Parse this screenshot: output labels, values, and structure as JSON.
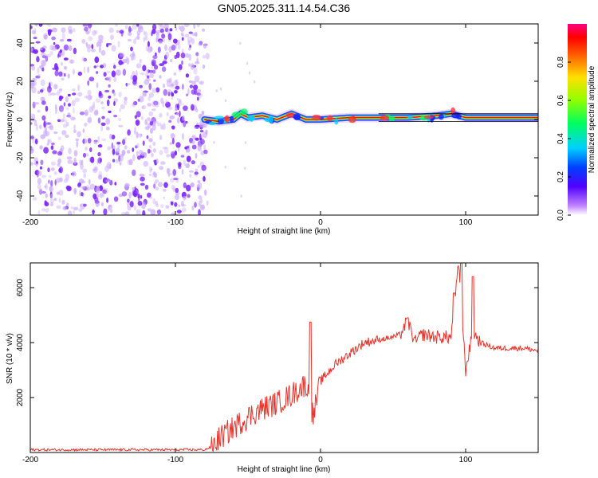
{
  "title": "GN05.2025.311.14.54.C36",
  "colors": {
    "dot_main": "#7a22ff",
    "dot_light": "#c9a8ff",
    "snr_line": "#e8342c",
    "axis": "#000000"
  },
  "chart_data": [
    {
      "type": "heatmap",
      "title": "GN05.2025.311.14.54.C36",
      "xlabel": "Height of straight line (km)",
      "ylabel": "Frequency (Hz)",
      "xlim": [
        -200,
        150
      ],
      "ylim": [
        -50,
        50
      ],
      "xticks": [
        -200,
        -100,
        0,
        100
      ],
      "yticks": [
        -40,
        -20,
        0,
        20,
        40
      ],
      "noise_region_x": [
        -200,
        -80
      ],
      "signal_track": {
        "x": [
          -80,
          -70,
          -60,
          -55,
          -50,
          -40,
          -30,
          -20,
          -10,
          0,
          20,
          40,
          60,
          80,
          90,
          100,
          110,
          130,
          150
        ],
        "y": [
          0,
          -1,
          0,
          3,
          1,
          2,
          0,
          3,
          0,
          0,
          1,
          1,
          1,
          2,
          3,
          1,
          1,
          1,
          1
        ]
      },
      "colorbar": {
        "label": "Normalized spectral amplitude",
        "range": [
          0,
          1
        ],
        "ticks": [
          "0.0",
          "0.2",
          "0.4",
          "0.6",
          "0.8"
        ],
        "tick_values": [
          0.0,
          0.2,
          0.4,
          0.6,
          0.8
        ],
        "colormap": [
          "#ffffff",
          "#a050ff",
          "#4000ff",
          "#0060ff",
          "#00e0ff",
          "#00ff40",
          "#b0ff00",
          "#ffe000",
          "#ff6000",
          "#ff0000",
          "#ff0080"
        ]
      }
    },
    {
      "type": "line",
      "xlabel": "Height of straight line (km)",
      "ylabel": "SNR (10 * v/v)",
      "xlim": [
        -200,
        150
      ],
      "ylim": [
        0,
        6900
      ],
      "xticks": [
        -200,
        -100,
        0,
        100
      ],
      "yticks": [
        2000,
        4000,
        6000
      ],
      "series": [
        {
          "name": "SNR",
          "x": [
            -200,
            -150,
            -100,
            -80,
            -75,
            -70,
            -60,
            -50,
            -40,
            -30,
            -20,
            -10,
            -5,
            0,
            10,
            20,
            30,
            40,
            50,
            55,
            60,
            65,
            70,
            80,
            90,
            95,
            100,
            105,
            110,
            120,
            130,
            140,
            150
          ],
          "y": [
            100,
            100,
            100,
            100,
            200,
            500,
            900,
            1300,
            1600,
            1800,
            2100,
            2500,
            1300,
            2600,
            3200,
            3600,
            4000,
            4100,
            4200,
            4300,
            4800,
            4000,
            4300,
            4200,
            4200,
            6800,
            3000,
            4400,
            4000,
            3800,
            3800,
            3800,
            3700
          ]
        }
      ],
      "spikes": [
        {
          "x": -7,
          "y": 4750
        },
        {
          "x": 60,
          "y": 4900
        },
        {
          "x": 92,
          "y": 5800
        },
        {
          "x": 97,
          "y": 6900
        },
        {
          "x": 105,
          "y": 6400
        }
      ]
    }
  ]
}
